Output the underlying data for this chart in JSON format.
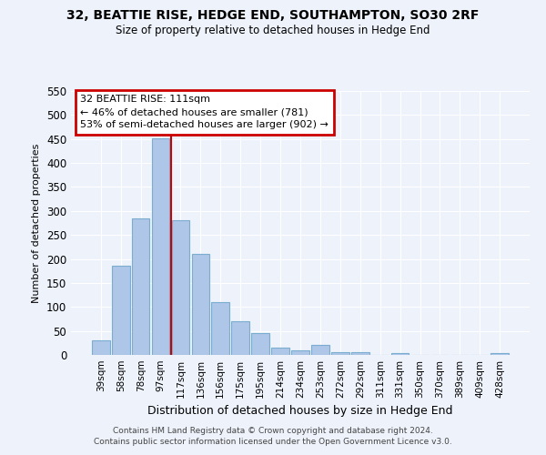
{
  "title": "32, BEATTIE RISE, HEDGE END, SOUTHAMPTON, SO30 2RF",
  "subtitle": "Size of property relative to detached houses in Hedge End",
  "xlabel": "Distribution of detached houses by size in Hedge End",
  "ylabel": "Number of detached properties",
  "bar_labels": [
    "39sqm",
    "58sqm",
    "78sqm",
    "97sqm",
    "117sqm",
    "136sqm",
    "156sqm",
    "175sqm",
    "195sqm",
    "214sqm",
    "234sqm",
    "253sqm",
    "272sqm",
    "292sqm",
    "311sqm",
    "331sqm",
    "350sqm",
    "370sqm",
    "389sqm",
    "409sqm",
    "428sqm"
  ],
  "bar_values": [
    30,
    185,
    285,
    452,
    280,
    210,
    110,
    70,
    45,
    15,
    10,
    20,
    5,
    5,
    0,
    3,
    0,
    0,
    0,
    0,
    3
  ],
  "bar_color": "#aec6e8",
  "bar_edgecolor": "#7aaed0",
  "vline_color": "#cc0000",
  "annotation_title": "32 BEATTIE RISE: 111sqm",
  "annotation_line1": "← 46% of detached houses are smaller (781)",
  "annotation_line2": "53% of semi-detached houses are larger (902) →",
  "annotation_box_edgecolor": "#cc0000",
  "ylim": [
    0,
    550
  ],
  "yticks": [
    0,
    50,
    100,
    150,
    200,
    250,
    300,
    350,
    400,
    450,
    500,
    550
  ],
  "background_color": "#eef2fb",
  "grid_color": "#ffffff",
  "footer1": "Contains HM Land Registry data © Crown copyright and database right 2024.",
  "footer2": "Contains public sector information licensed under the Open Government Licence v3.0."
}
